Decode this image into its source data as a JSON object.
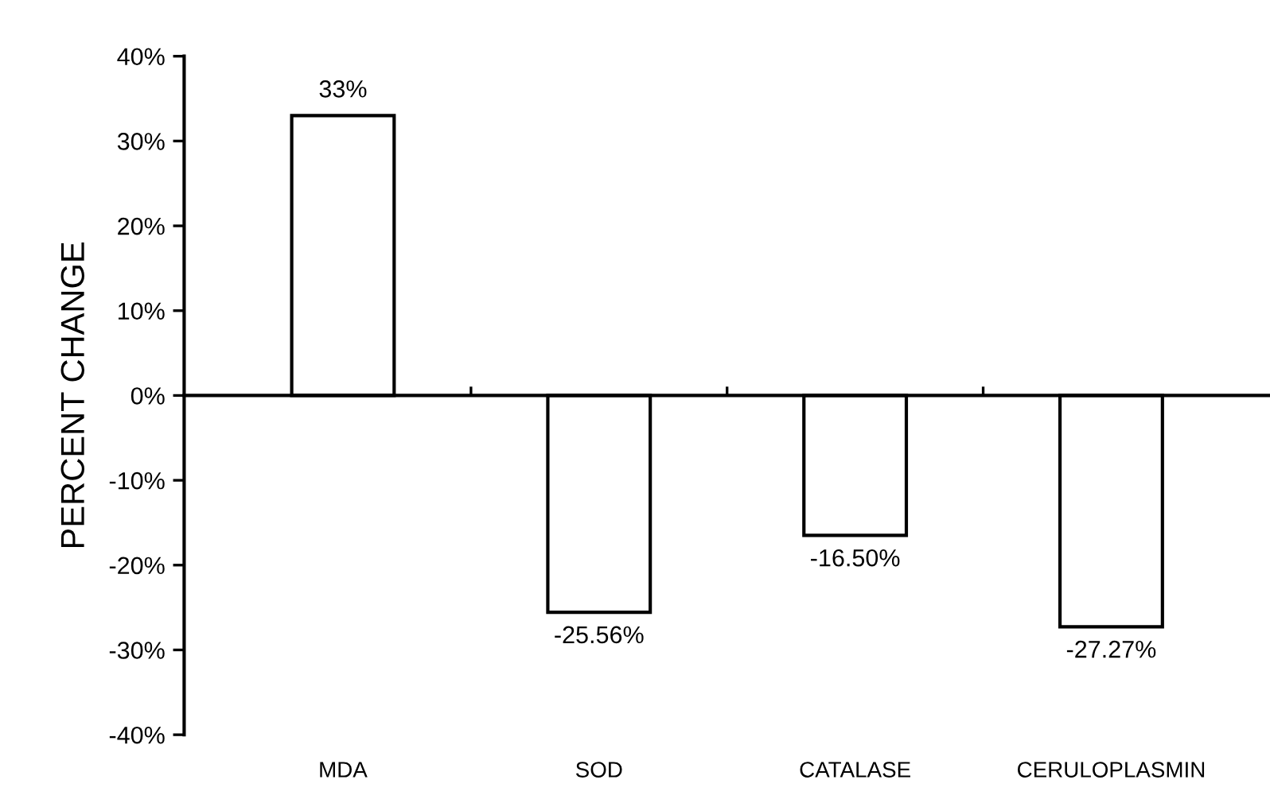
{
  "chart_data": {
    "type": "bar",
    "ylabel": "PERCENT CHANGE",
    "categories": [
      "MDA",
      "SOD",
      "CATALASE",
      "CERULOPLASMIN"
    ],
    "values": [
      33,
      -25.56,
      -16.5,
      -27.27
    ],
    "value_labels": [
      "33%",
      "-25.56%",
      "-16.50%",
      "-27.27%"
    ],
    "color": "#ffffff",
    "ylim": [
      -40,
      40
    ],
    "yticks": [
      {
        "value": -40,
        "label": "-40%"
      },
      {
        "value": -30,
        "label": "-30%"
      },
      {
        "value": -20,
        "label": "-20%"
      },
      {
        "value": -10,
        "label": "-10%"
      },
      {
        "value": 0,
        "label": "0%"
      },
      {
        "value": 10,
        "label": "10%"
      },
      {
        "value": 20,
        "label": "20%"
      },
      {
        "value": 30,
        "label": "30%"
      },
      {
        "value": 40,
        "label": "40%"
      }
    ],
    "legend": false
  }
}
